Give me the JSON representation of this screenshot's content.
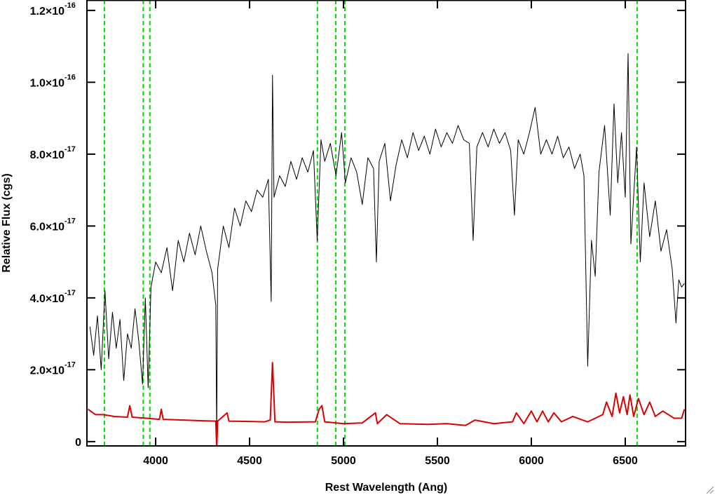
{
  "chart_data": {
    "type": "line",
    "xlabel": "Rest Wavelength (Ang)",
    "ylabel": "Relative Flux (cgs)",
    "xlim": [
      3634,
      6821
    ],
    "ylim": [
      -1.2e-18,
      1.229e-16
    ],
    "xticks": [
      4000,
      4500,
      5000,
      5500,
      6000,
      6500
    ],
    "yticks": [
      0,
      {
        "value": 2e-17,
        "label": "2.0×10",
        "exponent": "-17"
      },
      {
        "value": 4e-17,
        "label": "4.0×10",
        "exponent": "-17"
      },
      {
        "value": 6e-17,
        "label": "6.0×10",
        "exponent": "-17"
      },
      {
        "value": 8e-17,
        "label": "8.0×10",
        "exponent": "-17"
      },
      {
        "value": 1e-16,
        "label": "1.0×10",
        "exponent": "-16"
      },
      {
        "value": 1.2e-16,
        "label": "1.2×10",
        "exponent": "-16"
      }
    ],
    "vlines": {
      "x": [
        3727,
        3934,
        3969,
        4861,
        4959,
        5007,
        6563
      ],
      "color": "#00dd00"
    },
    "series": [
      {
        "color": "#000000",
        "x": [
          3650,
          3670,
          3690,
          3710,
          3730,
          3750,
          3770,
          3790,
          3810,
          3830,
          3850,
          3870,
          3890,
          3910,
          3930,
          3945,
          3960,
          3975,
          4000,
          4030,
          4060,
          4090,
          4120,
          4150,
          4180,
          4210,
          4240,
          4270,
          4300,
          4320,
          4325,
          4330,
          4360,
          4390,
          4420,
          4450,
          4480,
          4510,
          4540,
          4570,
          4600,
          4615,
          4622,
          4630,
          4660,
          4690,
          4720,
          4750,
          4780,
          4810,
          4840,
          4860,
          4880,
          4900,
          4930,
          4960,
          4990,
          5010,
          5040,
          5070,
          5100,
          5130,
          5160,
          5175,
          5190,
          5220,
          5250,
          5280,
          5310,
          5340,
          5370,
          5400,
          5430,
          5460,
          5490,
          5520,
          5550,
          5580,
          5610,
          5640,
          5670,
          5690,
          5710,
          5740,
          5770,
          5800,
          5830,
          5860,
          5890,
          5910,
          5930,
          5960,
          5990,
          6020,
          6050,
          6080,
          6110,
          6140,
          6170,
          6200,
          6230,
          6260,
          6280,
          6300,
          6320,
          6340,
          6360,
          6390,
          6420,
          6440,
          6460,
          6480,
          6500,
          6515,
          6530,
          6560,
          6580,
          6600,
          6630,
          6660,
          6690,
          6720,
          6750,
          6770,
          6785,
          6800,
          6815
        ],
        "values": [
          3.2e-17,
          2.4e-17,
          3.5e-17,
          2e-17,
          4.2e-17,
          2.3e-17,
          3.6e-17,
          2.6e-17,
          3.4e-17,
          1.7e-17,
          3e-17,
          2.6e-17,
          3.7e-17,
          2.8e-17,
          1.6e-17,
          4e-17,
          1.5e-17,
          4.3e-17,
          5e-17,
          4.7e-17,
          5.4e-17,
          4.2e-17,
          5.6e-17,
          5e-17,
          5.8e-17,
          5.2e-17,
          6e-17,
          5.3e-17,
          4.7e-17,
          3.8e-17,
          1e-18,
          4.8e-17,
          6e-17,
          5.4e-17,
          6.5e-17,
          6e-17,
          6.7e-17,
          6.4e-17,
          7e-17,
          6.8e-17,
          7.3e-17,
          3.9e-17,
          1.02e-16,
          6.8e-17,
          7.4e-17,
          7.1e-17,
          7.8e-17,
          7.3e-17,
          7.9e-17,
          7.5e-17,
          8.1e-17,
          5.6e-17,
          8.4e-17,
          7.8e-17,
          8.3e-17,
          7.4e-17,
          8.6e-17,
          7.2e-17,
          7.9e-17,
          7.5e-17,
          6.6e-17,
          7.9e-17,
          7.6e-17,
          5e-17,
          7.8e-17,
          8.3e-17,
          6.7e-17,
          7.7e-17,
          8.4e-17,
          7.9e-17,
          8.6e-17,
          8.1e-17,
          8.5e-17,
          8e-17,
          8.7e-17,
          8.2e-17,
          8.6e-17,
          8.3e-17,
          8.8e-17,
          8.4e-17,
          8.3e-17,
          5.6e-17,
          8.2e-17,
          8.6e-17,
          8.2e-17,
          8.7e-17,
          8.3e-17,
          8.6e-17,
          8.1e-17,
          6.3e-17,
          8.4e-17,
          8e-17,
          8.6e-17,
          9.3e-17,
          8e-17,
          8.4e-17,
          8e-17,
          8.5e-17,
          7.9e-17,
          8.2e-17,
          7.6e-17,
          8e-17,
          7.4e-17,
          2.1e-17,
          5.6e-17,
          4.6e-17,
          7.5e-17,
          8.8e-17,
          6.3e-17,
          9.4e-17,
          7.2e-17,
          8.6e-17,
          6.8e-17,
          1.08e-16,
          5.5e-17,
          8.2e-17,
          5e-17,
          7.2e-17,
          5.7e-17,
          6.7e-17,
          5.3e-17,
          5.9e-17,
          4.8e-17,
          3.3e-17,
          4.5e-17,
          4.3e-17,
          4.4e-17
        ]
      },
      {
        "color": "#dd0000",
        "x": [
          3640,
          3680,
          3720,
          3780,
          3850,
          3862,
          3875,
          3950,
          4020,
          4030,
          4040,
          4150,
          4250,
          4320,
          4325,
          4330,
          4380,
          4390,
          4500,
          4580,
          4610,
          4622,
          4635,
          4700,
          4850,
          4870,
          4885,
          4900,
          5000,
          5100,
          5170,
          5180,
          5230,
          5300,
          5450,
          5550,
          5650,
          5700,
          5800,
          5900,
          5920,
          5960,
          6000,
          6030,
          6060,
          6090,
          6120,
          6160,
          6220,
          6300,
          6380,
          6400,
          6430,
          6450,
          6470,
          6490,
          6510,
          6525,
          6545,
          6570,
          6600,
          6630,
          6660,
          6700,
          6760,
          6800,
          6815
        ],
        "values": [
          9e-18,
          7.5e-18,
          7.5e-18,
          7e-18,
          6.8e-18,
          1e-17,
          6.8e-18,
          6.5e-18,
          6.2e-18,
          9e-18,
          6.2e-18,
          6e-18,
          5.8e-18,
          5.7e-18,
          -2e-18,
          5.7e-18,
          8e-18,
          5.7e-18,
          5.6e-18,
          5.5e-18,
          6e-18,
          2.2e-17,
          5.5e-18,
          5.4e-18,
          5.5e-18,
          9e-18,
          1e-17,
          5.5e-18,
          5e-18,
          5.2e-18,
          8e-18,
          5e-18,
          7.5e-18,
          5e-18,
          4.8e-18,
          5e-18,
          4.5e-18,
          6e-18,
          5e-18,
          5.5e-18,
          8e-18,
          5e-18,
          8.5e-18,
          5.5e-18,
          8.5e-18,
          5.5e-18,
          8e-18,
          5.5e-18,
          7e-18,
          5.5e-18,
          7.5e-18,
          1.1e-17,
          7e-18,
          1.35e-17,
          8e-18,
          1.25e-17,
          7.5e-18,
          1.3e-17,
          7e-18,
          1.2e-17,
          7.5e-18,
          1.1e-17,
          7e-18,
          8.5e-18,
          6.5e-18,
          6.5e-18,
          9e-18
        ]
      }
    ]
  }
}
